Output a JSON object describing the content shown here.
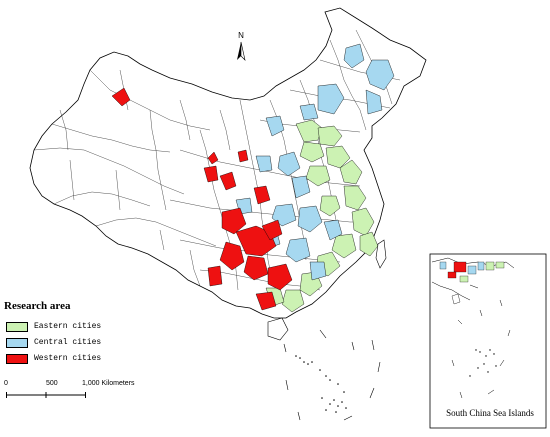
{
  "legend": {
    "title": "Research area",
    "items": [
      {
        "label": "Eastern cities",
        "color": "#ccf2b3"
      },
      {
        "label": "Central cities",
        "color": "#a6d8f0"
      },
      {
        "label": "Western cities",
        "color": "#ee1111"
      }
    ]
  },
  "north_arrow": {
    "label": "N"
  },
  "scale_bar": {
    "ticks": [
      "0",
      "500",
      "1,000 Kilometers"
    ]
  },
  "inset": {
    "caption": "South China Sea Islands"
  }
}
